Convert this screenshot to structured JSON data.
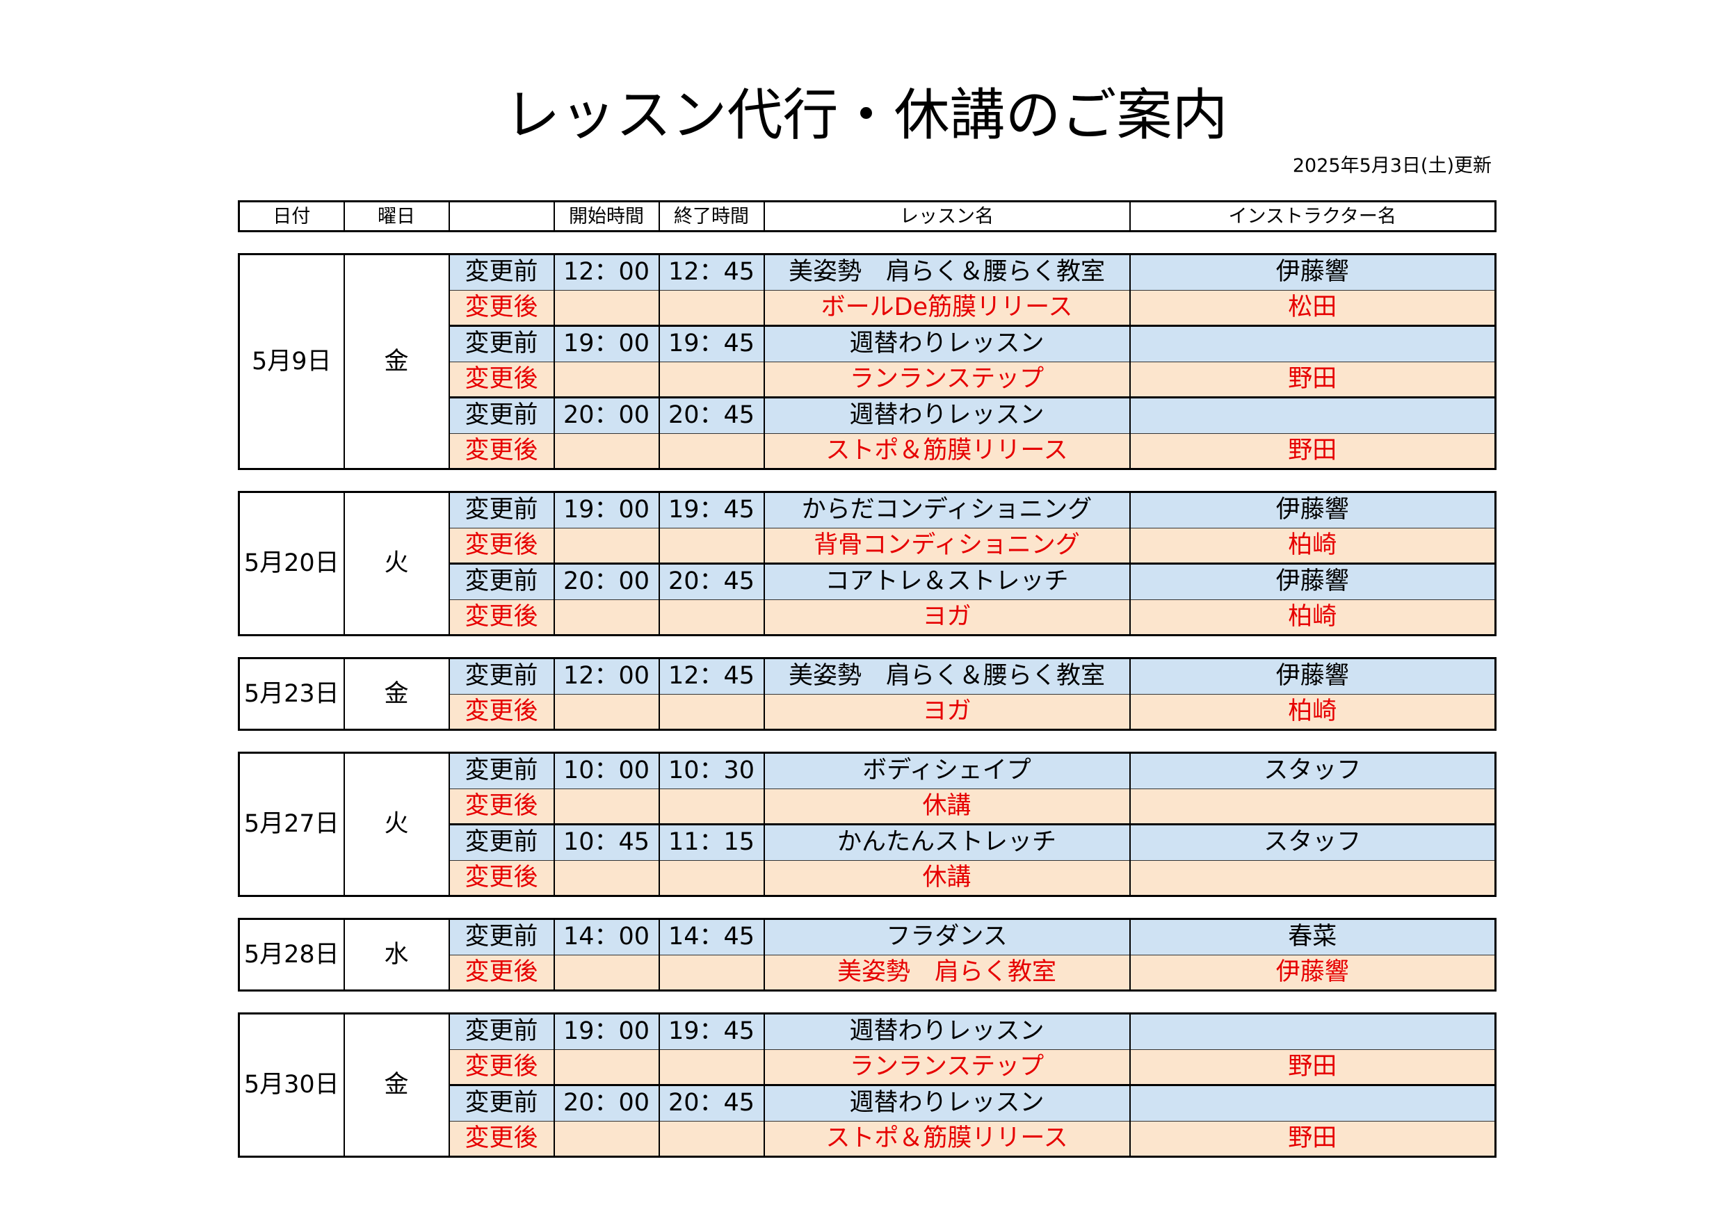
{
  "title": "レッスン代行・休講のご案内",
  "updated": "2025年5月3日(土)更新",
  "header": {
    "date": "日付",
    "weekday": "曜日",
    "start": "開始時間",
    "end": "終了時間",
    "lesson": "レッスン名",
    "instructor": "インストラクター名"
  },
  "colors": {
    "before_bg": "#cfe2f3",
    "after_bg": "#fce5cd",
    "before_text": "#000000",
    "after_text": "#e60000"
  },
  "days": [
    {
      "date": "5月9日",
      "weekday": "金",
      "changes": [
        {
          "before": {
            "label": "変更前",
            "start": "12：00",
            "end": "12：45",
            "lesson": "美姿勢　肩らく＆腰らく教室",
            "instructor": "伊藤響"
          },
          "after": {
            "label": "変更後",
            "start": "",
            "end": "",
            "lesson": "ボールDe筋膜リリース",
            "instructor": "松田"
          }
        },
        {
          "before": {
            "label": "変更前",
            "start": "19：00",
            "end": "19：45",
            "lesson": "週替わりレッスン",
            "instructor": ""
          },
          "after": {
            "label": "変更後",
            "start": "",
            "end": "",
            "lesson": "ランランステップ",
            "instructor": "野田"
          }
        },
        {
          "before": {
            "label": "変更前",
            "start": "20：00",
            "end": "20：45",
            "lesson": "週替わりレッスン",
            "instructor": ""
          },
          "after": {
            "label": "変更後",
            "start": "",
            "end": "",
            "lesson": "ストポ＆筋膜リリース",
            "instructor": "野田"
          }
        }
      ]
    },
    {
      "date": "5月20日",
      "weekday": "火",
      "changes": [
        {
          "before": {
            "label": "変更前",
            "start": "19：00",
            "end": "19：45",
            "lesson": "からだコンディショニング",
            "instructor": "伊藤響"
          },
          "after": {
            "label": "変更後",
            "start": "",
            "end": "",
            "lesson": "背骨コンディショニング",
            "instructor": "柏崎"
          }
        },
        {
          "before": {
            "label": "変更前",
            "start": "20：00",
            "end": "20：45",
            "lesson": "コアトレ＆ストレッチ",
            "instructor": "伊藤響"
          },
          "after": {
            "label": "変更後",
            "start": "",
            "end": "",
            "lesson": "ヨガ",
            "instructor": "柏崎"
          }
        }
      ]
    },
    {
      "date": "5月23日",
      "weekday": "金",
      "changes": [
        {
          "before": {
            "label": "変更前",
            "start": "12：00",
            "end": "12：45",
            "lesson": "美姿勢　肩らく＆腰らく教室",
            "instructor": "伊藤響"
          },
          "after": {
            "label": "変更後",
            "start": "",
            "end": "",
            "lesson": "ヨガ",
            "instructor": "柏崎"
          }
        }
      ]
    },
    {
      "date": "5月27日",
      "weekday": "火",
      "changes": [
        {
          "before": {
            "label": "変更前",
            "start": "10：00",
            "end": "10：30",
            "lesson": "ボディシェイプ",
            "instructor": "スタッフ"
          },
          "after": {
            "label": "変更後",
            "start": "",
            "end": "",
            "lesson": "休講",
            "instructor": ""
          }
        },
        {
          "before": {
            "label": "変更前",
            "start": "10：45",
            "end": "11：15",
            "lesson": "かんたんストレッチ",
            "instructor": "スタッフ"
          },
          "after": {
            "label": "変更後",
            "start": "",
            "end": "",
            "lesson": "休講",
            "instructor": ""
          }
        }
      ]
    },
    {
      "date": "5月28日",
      "weekday": "水",
      "changes": [
        {
          "before": {
            "label": "変更前",
            "start": "14：00",
            "end": "14：45",
            "lesson": "フラダンス",
            "instructor": "春菜"
          },
          "after": {
            "label": "変更後",
            "start": "",
            "end": "",
            "lesson": "美姿勢　肩らく教室",
            "instructor": "伊藤響"
          }
        }
      ]
    },
    {
      "date": "5月30日",
      "weekday": "金",
      "changes": [
        {
          "before": {
            "label": "変更前",
            "start": "19：00",
            "end": "19：45",
            "lesson": "週替わりレッスン",
            "instructor": ""
          },
          "after": {
            "label": "変更後",
            "start": "",
            "end": "",
            "lesson": "ランランステップ",
            "instructor": "野田"
          }
        },
        {
          "before": {
            "label": "変更前",
            "start": "20：00",
            "end": "20：45",
            "lesson": "週替わりレッスン",
            "instructor": ""
          },
          "after": {
            "label": "変更後",
            "start": "",
            "end": "",
            "lesson": "ストポ＆筋膜リリース",
            "instructor": "野田"
          }
        }
      ]
    }
  ]
}
